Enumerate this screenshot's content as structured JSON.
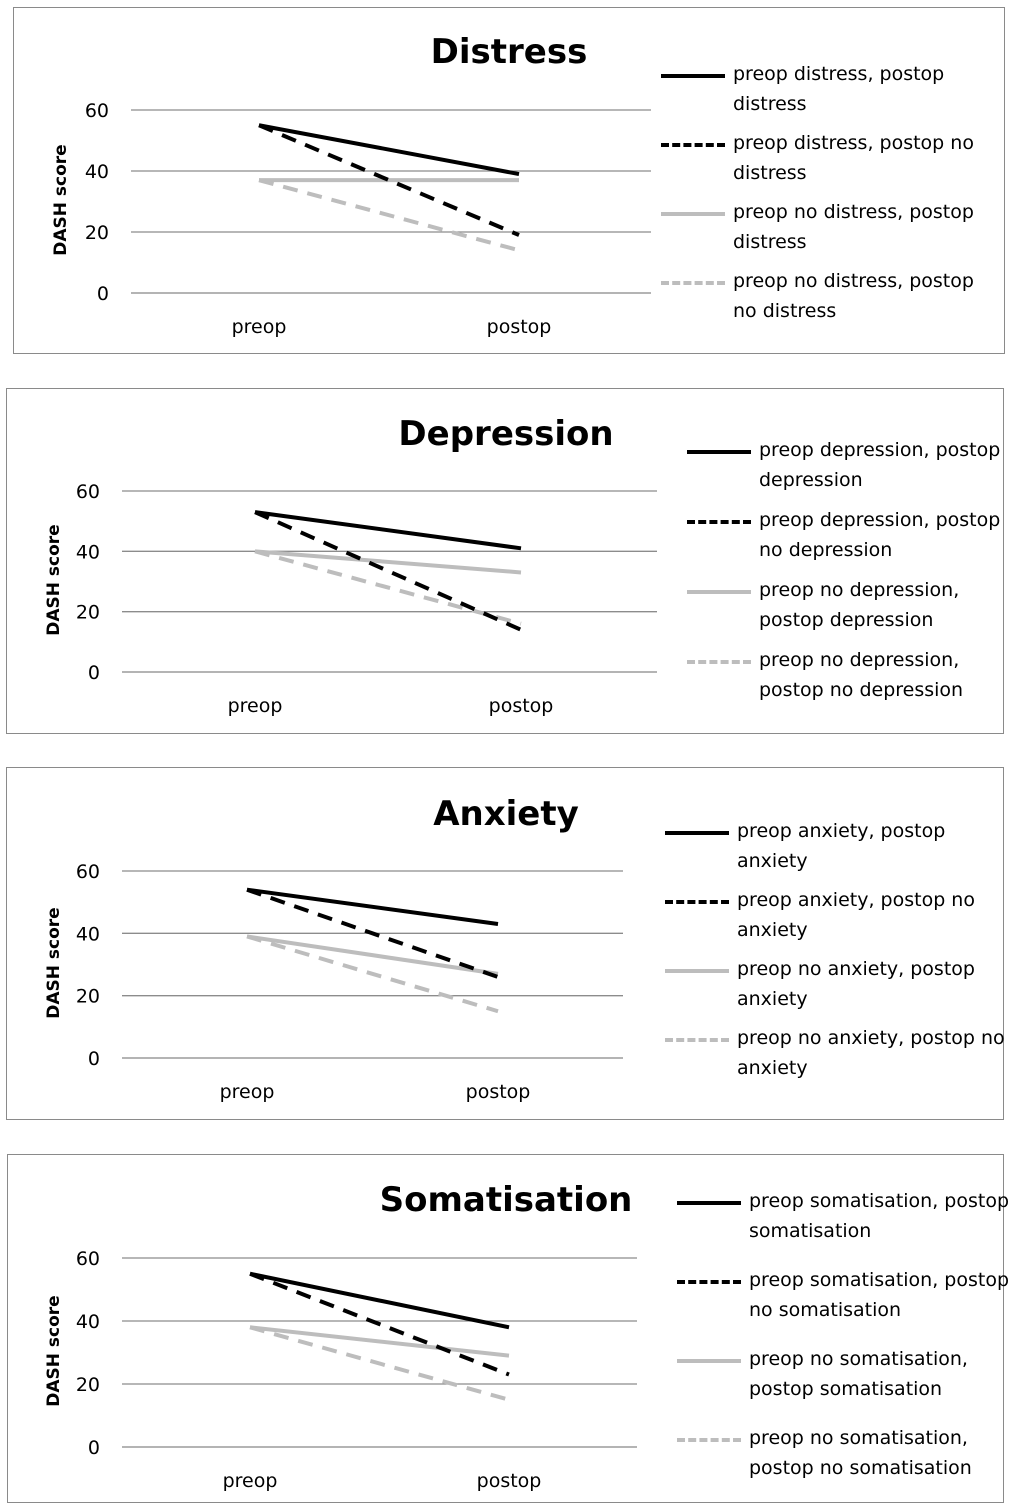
{
  "chart_data": [
    {
      "type": "line",
      "title": "Distress",
      "ylabel": "DASH score",
      "categories": [
        "preop",
        "postop"
      ],
      "yticks": [
        0,
        20,
        40,
        60
      ],
      "ylim": [
        0,
        60
      ],
      "grid": true,
      "legend_position": "right",
      "series": [
        {
          "name": "preop distress, postop distress",
          "values": [
            55,
            39
          ],
          "color": "#000000",
          "dashed": false
        },
        {
          "name": "preop distress, postop no distress",
          "values": [
            55,
            19
          ],
          "color": "#000000",
          "dashed": true
        },
        {
          "name": "preop no distress, postop distress",
          "values": [
            37,
            37
          ],
          "color": "#bdbdbd",
          "dashed": false
        },
        {
          "name": "preop no distress, postop no distress",
          "values": [
            37,
            14
          ],
          "color": "#bdbdbd",
          "dashed": true
        }
      ]
    },
    {
      "type": "line",
      "title": "Depression",
      "ylabel": "DASH score",
      "categories": [
        "preop",
        "postop"
      ],
      "yticks": [
        0,
        20,
        40,
        60
      ],
      "ylim": [
        0,
        60
      ],
      "grid": true,
      "legend_position": "right",
      "series": [
        {
          "name": "preop depression, postop depression",
          "values": [
            53,
            41
          ],
          "color": "#000000",
          "dashed": false
        },
        {
          "name": "preop depression, postop no depression",
          "values": [
            53,
            14
          ],
          "color": "#000000",
          "dashed": true
        },
        {
          "name": "preop no depression, postop depression",
          "values": [
            40,
            33
          ],
          "color": "#bdbdbd",
          "dashed": false
        },
        {
          "name": "preop no depression, postop no depression",
          "values": [
            40,
            16
          ],
          "color": "#bdbdbd",
          "dashed": true
        }
      ]
    },
    {
      "type": "line",
      "title": "Anxiety",
      "ylabel": "DASH score",
      "categories": [
        "preop",
        "postop"
      ],
      "yticks": [
        0,
        20,
        40,
        60
      ],
      "ylim": [
        0,
        60
      ],
      "grid": true,
      "legend_position": "right",
      "series": [
        {
          "name": "preop anxiety, postop anxiety",
          "values": [
            54,
            43
          ],
          "color": "#000000",
          "dashed": false
        },
        {
          "name": "preop anxiety, postop no anxiety",
          "values": [
            54,
            26
          ],
          "color": "#000000",
          "dashed": true
        },
        {
          "name": "preop no anxiety, postop anxiety",
          "values": [
            39,
            27
          ],
          "color": "#bdbdbd",
          "dashed": false
        },
        {
          "name": "preop no anxiety, postop no anxiety",
          "values": [
            39,
            15
          ],
          "color": "#bdbdbd",
          "dashed": true
        }
      ]
    },
    {
      "type": "line",
      "title": "Somatisation",
      "ylabel": "DASH score",
      "categories": [
        "preop",
        "postop"
      ],
      "yticks": [
        0,
        20,
        40,
        60
      ],
      "ylim": [
        0,
        60
      ],
      "grid": true,
      "legend_position": "right",
      "series": [
        {
          "name": "preop somatisation, postop somatisation",
          "values": [
            55,
            38
          ],
          "color": "#000000",
          "dashed": false
        },
        {
          "name": "preop somatisation, postop no somatisation",
          "values": [
            55,
            23
          ],
          "color": "#000000",
          "dashed": true
        },
        {
          "name": "preop no somatisation, postop somatisation",
          "values": [
            38,
            29
          ],
          "color": "#bdbdbd",
          "dashed": false
        },
        {
          "name": "preop no somatisation, postop no somatisation",
          "values": [
            38,
            15
          ],
          "color": "#bdbdbd",
          "dashed": true
        }
      ]
    }
  ]
}
